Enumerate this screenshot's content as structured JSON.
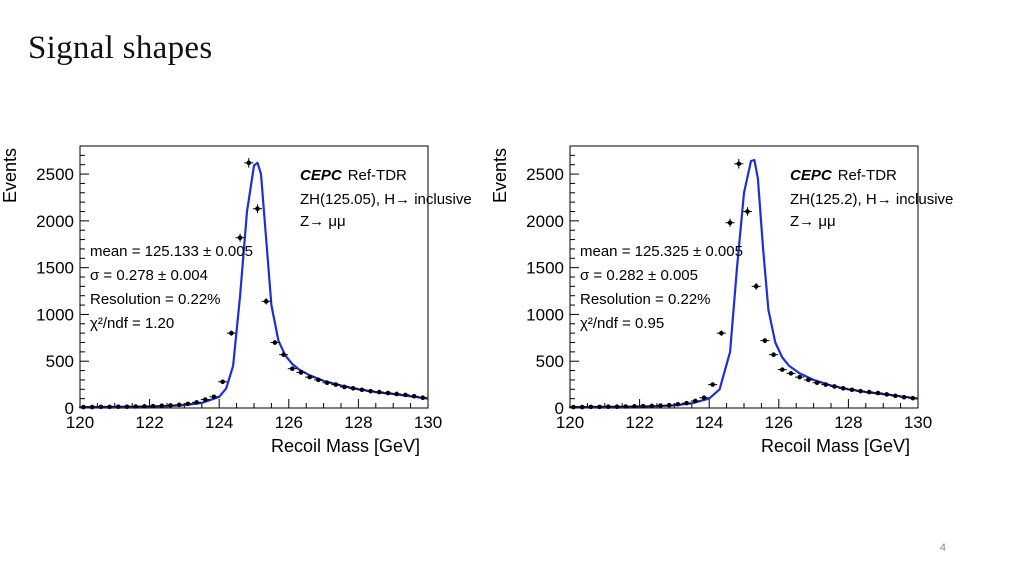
{
  "slide": {
    "title": "Signal shapes",
    "page_number": "4"
  },
  "chart_data": [
    {
      "type": "scatter",
      "title": "",
      "xlabel": "Recoil Mass [GeV]",
      "ylabel": "Events",
      "xlim": [
        120,
        130
      ],
      "ylim": [
        0,
        2800
      ],
      "xticks": [
        "120",
        "122",
        "124",
        "126",
        "128",
        "130"
      ],
      "yticks": [
        "0",
        "500",
        "1000",
        "1500",
        "2000",
        "2500"
      ],
      "legend": {
        "brand": "CEPC",
        "tag": "Ref-TDR",
        "process": "ZH(125.05), H→ inclusive",
        "decay": "Z→ μμ"
      },
      "fit_stats": [
        "mean = 125.133 ± 0.005",
        "σ = 0.278 ± 0.004",
        "Resolution = 0.22%",
        "χ²/ndf = 1.20"
      ],
      "series": [
        {
          "name": "data",
          "x": [
            120.1,
            120.35,
            120.6,
            120.85,
            121.1,
            121.35,
            121.6,
            121.85,
            122.1,
            122.35,
            122.6,
            122.85,
            123.1,
            123.35,
            123.6,
            123.85,
            124.1,
            124.35,
            124.6,
            124.85,
            125.1,
            125.35,
            125.6,
            125.85,
            126.1,
            126.35,
            126.6,
            126.85,
            127.1,
            127.35,
            127.6,
            127.85,
            128.1,
            128.35,
            128.6,
            128.85,
            129.1,
            129.35,
            129.6,
            129.85
          ],
          "y": [
            10,
            10,
            12,
            12,
            14,
            14,
            16,
            18,
            20,
            24,
            28,
            34,
            44,
            60,
            90,
            120,
            280,
            800,
            1820,
            2620,
            2130,
            1140,
            700,
            570,
            420,
            380,
            330,
            300,
            270,
            250,
            225,
            210,
            195,
            180,
            170,
            160,
            150,
            140,
            125,
            110
          ]
        },
        {
          "name": "fit",
          "x": [
            120.0,
            120.5,
            121.0,
            121.5,
            122.0,
            122.5,
            123.0,
            123.5,
            124.0,
            124.2,
            124.4,
            124.6,
            124.8,
            125.0,
            125.1,
            125.2,
            125.35,
            125.5,
            125.7,
            125.9,
            126.1,
            126.3,
            126.6,
            127.0,
            127.5,
            128.0,
            128.5,
            129.0,
            129.5,
            130.0
          ],
          "y": [
            10,
            11,
            12,
            14,
            16,
            20,
            30,
            55,
            120,
            210,
            450,
            1200,
            2100,
            2590,
            2620,
            2500,
            1800,
            1100,
            720,
            560,
            470,
            410,
            350,
            290,
            240,
            200,
            170,
            150,
            125,
            100
          ]
        }
      ]
    },
    {
      "type": "scatter",
      "title": "",
      "xlabel": "Recoil Mass [GeV]",
      "ylabel": "Events",
      "xlim": [
        120,
        130
      ],
      "ylim": [
        0,
        2800
      ],
      "xticks": [
        "120",
        "122",
        "124",
        "126",
        "128",
        "130"
      ],
      "yticks": [
        "0",
        "500",
        "1000",
        "1500",
        "2000",
        "2500"
      ],
      "legend": {
        "brand": "CEPC",
        "tag": "Ref-TDR",
        "process": "ZH(125.2), H→ inclusive",
        "decay": "Z→ μμ"
      },
      "fit_stats": [
        "mean = 125.325 ± 0.005",
        "σ = 0.282 ± 0.005",
        "Resolution = 0.22%",
        "χ²/ndf = 0.95"
      ],
      "series": [
        {
          "name": "data",
          "x": [
            120.1,
            120.35,
            120.6,
            120.85,
            121.1,
            121.35,
            121.6,
            121.85,
            122.1,
            122.35,
            122.6,
            122.85,
            123.1,
            123.35,
            123.6,
            123.85,
            124.1,
            124.35,
            124.6,
            124.85,
            125.1,
            125.35,
            125.6,
            125.85,
            126.1,
            126.35,
            126.6,
            126.85,
            127.1,
            127.35,
            127.6,
            127.85,
            128.1,
            128.35,
            128.6,
            128.85,
            129.1,
            129.35,
            129.6,
            129.85
          ],
          "y": [
            10,
            10,
            12,
            12,
            14,
            14,
            16,
            18,
            20,
            22,
            26,
            30,
            40,
            52,
            75,
            110,
            250,
            800,
            1980,
            2610,
            2100,
            1300,
            720,
            570,
            410,
            370,
            330,
            300,
            270,
            250,
            230,
            210,
            195,
            180,
            170,
            160,
            145,
            130,
            115,
            105
          ]
        },
        {
          "name": "fit",
          "x": [
            120.0,
            120.5,
            121.0,
            121.5,
            122.0,
            122.5,
            123.0,
            123.5,
            124.0,
            124.3,
            124.6,
            124.8,
            125.0,
            125.2,
            125.3,
            125.4,
            125.55,
            125.7,
            125.9,
            126.1,
            126.3,
            126.6,
            127.0,
            127.5,
            128.0,
            128.5,
            129.0,
            129.5,
            130.0
          ],
          "y": [
            10,
            11,
            12,
            14,
            16,
            19,
            28,
            50,
            100,
            200,
            600,
            1500,
            2300,
            2640,
            2650,
            2450,
            1700,
            1050,
            700,
            540,
            450,
            370,
            300,
            240,
            200,
            170,
            150,
            125,
            100
          ]
        }
      ]
    }
  ]
}
